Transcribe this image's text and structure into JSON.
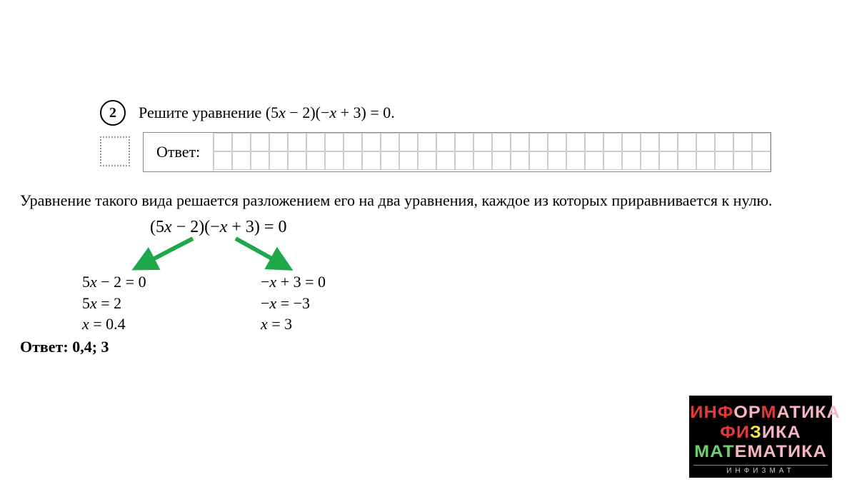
{
  "problem": {
    "number": "2",
    "prompt_prefix": "Решите уравнение ",
    "equation": "(5x − 2)(−x + 3) = 0",
    "prompt_suffix": "."
  },
  "answer_box": {
    "label": "Ответ:",
    "grid_cols": 30,
    "grid_rows": 2
  },
  "explanation": "Уравнение такого вида решается разложением его на два уравнения, каждое из которых приравнивается к нулю.",
  "main_equation": "(5x − 2)(−x + 3) = 0",
  "branch_left": {
    "line1": "5x − 2 = 0",
    "line2": "5x = 2",
    "line3": "x = 0.4"
  },
  "branch_right": {
    "line1": "−x + 3 = 0",
    "line2": "−x = −3",
    "line3": "x = 3"
  },
  "final_answer": "Ответ: 0,4; 3",
  "arrows": {
    "color": "#1fa84a",
    "stroke_width": 6
  },
  "logo": {
    "line1_a": "ИНФ",
    "line1_b": "ОР",
    "line1_c": "М",
    "line1_d": "АТИКА",
    "line2_a": "ФИ",
    "line2_b": "З",
    "line2_c": "ИКА",
    "line3_a": "МАТ",
    "line3_b": "ЕМ",
    "line3_c": "АТИКА",
    "sub": "ИНФИЗМАТ",
    "bg_color": "#000000"
  },
  "colors": {
    "text": "#000000",
    "grid_border": "#cccccc",
    "dotted": "#999999"
  }
}
